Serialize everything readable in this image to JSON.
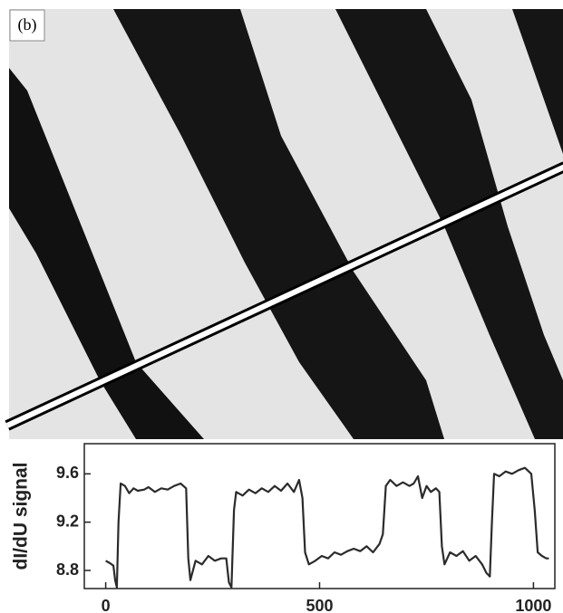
{
  "panel_label": "(b)",
  "chart_data": {
    "type": "line",
    "ylabel": "dI/dU signal",
    "x": [
      0,
      10,
      18,
      22,
      26,
      30,
      35,
      45,
      55,
      65,
      75,
      90,
      100,
      115,
      130,
      145,
      160,
      175,
      188,
      193,
      198,
      210,
      225,
      240,
      255,
      270,
      282,
      288,
      294,
      300,
      305,
      320,
      335,
      350,
      365,
      380,
      395,
      410,
      425,
      440,
      452,
      460,
      466,
      475,
      490,
      505,
      520,
      535,
      550,
      565,
      580,
      595,
      610,
      625,
      640,
      648,
      655,
      665,
      680,
      695,
      710,
      720,
      730,
      740,
      750,
      760,
      772,
      780,
      786,
      792,
      805,
      820,
      835,
      850,
      865,
      880,
      890,
      898,
      903,
      908,
      920,
      935,
      950,
      965,
      980,
      995,
      1003,
      1010,
      1020,
      1030,
      1036
    ],
    "series": [
      {
        "color": "#2b2b2b",
        "values": [
          8.88,
          8.86,
          8.84,
          8.72,
          8.66,
          9.2,
          9.52,
          9.5,
          9.44,
          9.48,
          9.46,
          9.47,
          9.49,
          9.45,
          9.48,
          9.47,
          9.5,
          9.52,
          9.48,
          8.9,
          8.72,
          8.88,
          8.85,
          8.92,
          8.88,
          8.9,
          8.9,
          8.7,
          8.66,
          9.3,
          9.45,
          9.42,
          9.47,
          9.44,
          9.48,
          9.45,
          9.5,
          9.46,
          9.52,
          9.45,
          9.55,
          9.4,
          8.95,
          8.85,
          8.88,
          8.92,
          8.9,
          8.95,
          8.93,
          8.96,
          8.98,
          8.96,
          9.0,
          8.95,
          9.02,
          9.1,
          9.5,
          9.55,
          9.5,
          9.53,
          9.5,
          9.52,
          9.58,
          9.4,
          9.5,
          9.45,
          9.48,
          9.45,
          9.0,
          8.85,
          8.95,
          8.92,
          8.96,
          8.88,
          8.92,
          8.85,
          8.78,
          8.75,
          9.2,
          9.6,
          9.58,
          9.62,
          9.6,
          9.63,
          9.65,
          9.6,
          9.3,
          8.95,
          8.92,
          8.9,
          8.9
        ]
      }
    ],
    "xlim": [
      -50,
      1050
    ],
    "ylim": [
      8.65,
      9.85
    ],
    "xticks": [
      0,
      500,
      1000
    ],
    "yticks": [
      8.8,
      9.2,
      9.6
    ]
  }
}
